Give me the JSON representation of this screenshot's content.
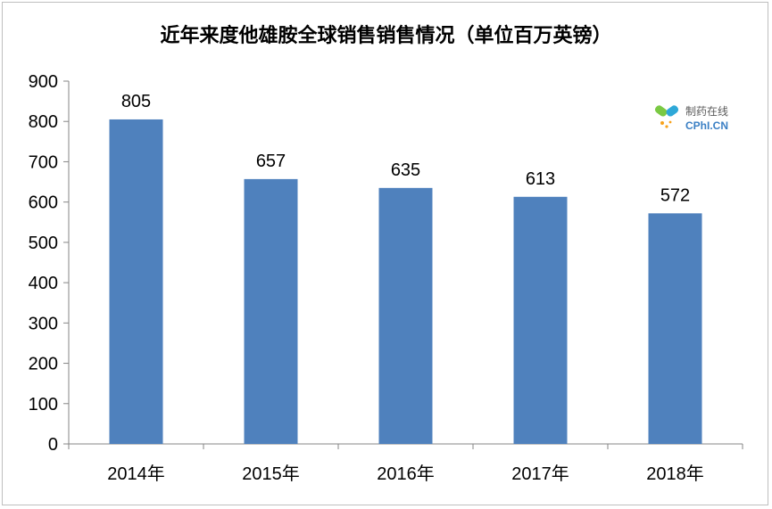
{
  "chart_data": {
    "type": "bar",
    "title": "近年来度他雄胺全球销售销售情况（单位百万英镑）",
    "categories": [
      "2014年",
      "2015年",
      "2016年",
      "2017年",
      "2018年"
    ],
    "values": [
      805,
      657,
      635,
      613,
      572
    ],
    "ylim": [
      0,
      900
    ],
    "yticks": [
      0,
      100,
      200,
      300,
      400,
      500,
      600,
      700,
      800,
      900
    ],
    "xlabel": "",
    "ylabel": "",
    "grid": false,
    "legend": "none",
    "bar_color": "#4f81bd"
  },
  "watermark": {
    "cn": "制药在线",
    "en": "CPhI.CN",
    "icon": "capsule-logo-icon"
  }
}
